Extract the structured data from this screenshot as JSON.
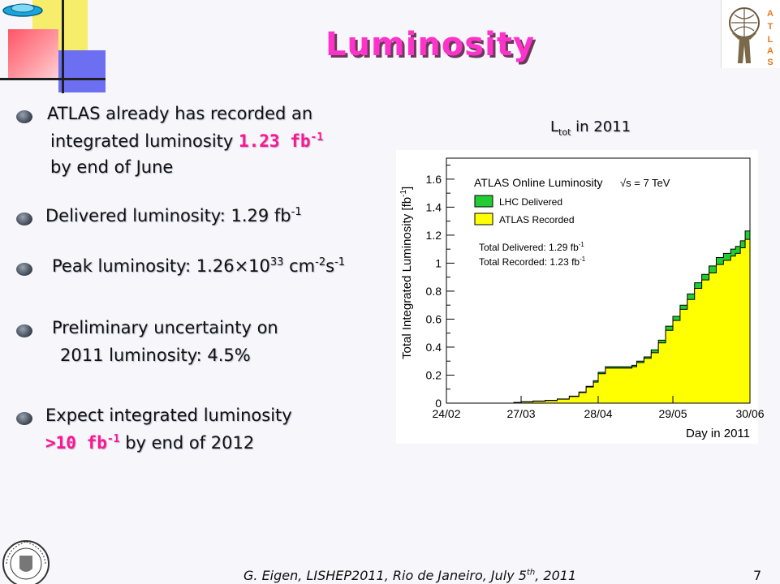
{
  "slide": {
    "title": "Luminosity",
    "bullets": [
      {
        "line1": "ATLAS already has recorded an",
        "line2_pre": "integrated luminosity ",
        "line2_highlight": "1.23 fb",
        "line2_sup": "-1",
        "line3": "by end of June"
      },
      {
        "text": "Delivered luminosity: 1.29 fb",
        "sup": "-1"
      },
      {
        "pre": "Peak luminosity: 1.26",
        "times": "×",
        "mid": "10",
        "sup1": "33",
        "unit1": " cm",
        "sup2": "-2",
        "unit2": "s",
        "sup3": "-1"
      },
      {
        "line1": "Preliminary uncertainty on",
        "line2": "2011 luminosity: 4.5%"
      },
      {
        "line1": "Expect integrated luminosity",
        "line2_highlight": ">10 fb",
        "line2_sup": "-1",
        "line2_post": " by end of 2012"
      }
    ],
    "chart_caption": {
      "pre": "L",
      "sub": "tot",
      "post": " in 2011"
    },
    "footer": "G. Eigen, LISHEP2011, Rio de Janeiro, July 5",
    "footer_sup": "th",
    "footer_post": ", 2011",
    "page_number": "7",
    "colors": {
      "title": "#ff33cc",
      "highlight": "#ff1493",
      "delivered": "#22cc33",
      "recorded": "#ffff00"
    },
    "icons": [
      "nav-back-icon",
      "atlas-logo-icon",
      "university-seal-icon",
      "bullet-icon"
    ]
  },
  "chart_data": {
    "type": "area",
    "ylabel": "Total Integrated Luminosity [fb",
    "ylabel_sup": "-1",
    "ylabel_close": "]",
    "xlabel": "Day in 2011",
    "ylim": [
      0,
      1.75
    ],
    "y_ticks": [
      "0",
      "0.2",
      "0.4",
      "0.6",
      "0.8",
      "1",
      "1.2",
      "1.4",
      "1.6"
    ],
    "x_ticks": [
      "24/02",
      "27/03",
      "28/04",
      "29/05",
      "30/06"
    ],
    "legend_title": "ATLAS Online Luminosity",
    "legend_energy": "√s = 7 TeV",
    "legend": [
      "LHC Delivered",
      "ATLAS Recorded"
    ],
    "annotation_delivered": "Total Delivered: 1.29 fb",
    "annotation_recorded": "Total Recorded: 1.23 fb",
    "annotation_sup": "-1",
    "legend_position": "top-left",
    "series": [
      {
        "name": "LHC Delivered",
        "color": "#22cc33",
        "x": [
          "24/02",
          "03/03",
          "10/03",
          "17/03",
          "24/03",
          "27/03",
          "01/04",
          "06/04",
          "11/04",
          "16/04",
          "20/04",
          "23/04",
          "26/04",
          "28/04",
          "01/05",
          "03/05",
          "06/05",
          "09/05",
          "12/05",
          "14/05",
          "17/05",
          "20/05",
          "23/05",
          "26/05",
          "29/05",
          "01/06",
          "04/06",
          "07/06",
          "10/06",
          "13/06",
          "16/06",
          "19/06",
          "22/06",
          "24/06",
          "26/06",
          "28/06",
          "30/06"
        ],
        "values": [
          0,
          0,
          0,
          0,
          0.005,
          0.01,
          0.015,
          0.02,
          0.03,
          0.05,
          0.08,
          0.12,
          0.16,
          0.22,
          0.26,
          0.26,
          0.26,
          0.26,
          0.27,
          0.3,
          0.33,
          0.38,
          0.45,
          0.55,
          0.62,
          0.7,
          0.78,
          0.86,
          0.92,
          0.98,
          1.04,
          1.07,
          1.1,
          1.12,
          1.16,
          1.23,
          1.29
        ]
      },
      {
        "name": "ATLAS Recorded",
        "color": "#ffff00",
        "x": [
          "24/02",
          "03/03",
          "10/03",
          "17/03",
          "24/03",
          "27/03",
          "01/04",
          "06/04",
          "11/04",
          "16/04",
          "20/04",
          "23/04",
          "26/04",
          "28/04",
          "01/05",
          "03/05",
          "06/05",
          "09/05",
          "12/05",
          "14/05",
          "17/05",
          "20/05",
          "23/05",
          "26/05",
          "29/05",
          "01/06",
          "04/06",
          "07/06",
          "10/06",
          "13/06",
          "16/06",
          "19/06",
          "22/06",
          "24/06",
          "26/06",
          "28/06",
          "30/06"
        ],
        "values": [
          0,
          0,
          0,
          0,
          0.004,
          0.009,
          0.013,
          0.018,
          0.028,
          0.047,
          0.075,
          0.115,
          0.15,
          0.21,
          0.25,
          0.25,
          0.25,
          0.25,
          0.26,
          0.29,
          0.32,
          0.36,
          0.43,
          0.52,
          0.59,
          0.67,
          0.74,
          0.82,
          0.88,
          0.93,
          0.99,
          1.02,
          1.05,
          1.07,
          1.11,
          1.17,
          1.23
        ]
      }
    ]
  }
}
